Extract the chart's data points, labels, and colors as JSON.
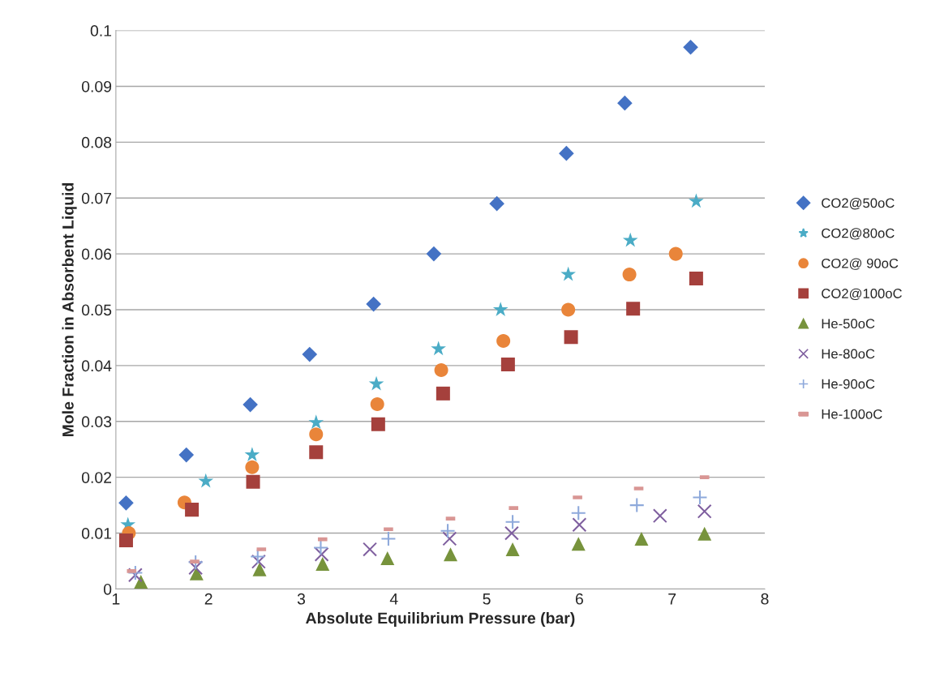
{
  "chart_data": {
    "type": "scatter",
    "xlabel": "Absolute Equilibrium Pressure (bar)",
    "ylabel": "Mole Fraction in Absorbent Liquid",
    "xlim": [
      1,
      8
    ],
    "xticks": [
      1,
      2,
      3,
      4,
      5,
      6,
      7,
      8
    ],
    "ylim": [
      0,
      0.1
    ],
    "yticks": [
      0,
      0.01,
      0.02,
      0.03,
      0.04,
      0.05,
      0.06,
      0.07,
      0.08,
      0.09,
      0.1
    ],
    "grid": "y",
    "legend": "right",
    "series": [
      {
        "name": "CO2@50oC",
        "color": "#4472c4",
        "marker": "diamond",
        "x": [
          1.11,
          1.76,
          2.45,
          3.09,
          3.78,
          4.43,
          5.11,
          5.86,
          6.49,
          7.2
        ],
        "values": [
          0.0154,
          0.024,
          0.033,
          0.042,
          0.051,
          0.06,
          0.069,
          0.078,
          0.087,
          0.097
        ]
      },
      {
        "name": "CO2@80oC",
        "color": "#4bacc6",
        "marker": "star",
        "x": [
          1.13,
          1.97,
          2.47,
          3.16,
          3.81,
          4.48,
          5.15,
          5.88,
          6.55,
          7.26
        ],
        "values": [
          0.0115,
          0.0193,
          0.024,
          0.0298,
          0.0367,
          0.043,
          0.05,
          0.0563,
          0.0624,
          0.0694
        ]
      },
      {
        "name": "CO2@ 90oC",
        "color": "#e9853a",
        "marker": "circle",
        "x": [
          1.14,
          1.74,
          2.47,
          3.16,
          3.82,
          4.51,
          5.18,
          5.88,
          6.54,
          7.04
        ],
        "values": [
          0.01,
          0.0155,
          0.0218,
          0.0277,
          0.0331,
          0.0392,
          0.0444,
          0.05,
          0.0563,
          0.06
        ]
      },
      {
        "name": "CO2@100oC",
        "color": "#a5403c",
        "marker": "square",
        "x": [
          1.11,
          1.82,
          2.48,
          3.16,
          3.83,
          4.53,
          5.23,
          5.91,
          6.58,
          7.26
        ],
        "values": [
          0.0087,
          0.0142,
          0.0192,
          0.0245,
          0.0295,
          0.035,
          0.0402,
          0.0451,
          0.0502,
          0.0556
        ]
      },
      {
        "name": "He-50oC",
        "color": "#77933c",
        "marker": "triangle",
        "x": [
          1.27,
          1.87,
          2.55,
          3.23,
          3.93,
          4.61,
          5.28,
          5.99,
          6.67,
          7.35
        ],
        "values": [
          0.0013,
          0.0028,
          0.0035,
          0.0045,
          0.0055,
          0.0062,
          0.0071,
          0.0081,
          0.009,
          0.0099
        ]
      },
      {
        "name": "He-80oC",
        "color": "#7f5f9f",
        "marker": "cross",
        "x": [
          1.21,
          1.86,
          2.54,
          3.22,
          3.74,
          4.6,
          5.27,
          6.0,
          6.87,
          7.35
        ],
        "values": [
          0.0025,
          0.0038,
          0.0049,
          0.0062,
          0.0071,
          0.009,
          0.01,
          0.0115,
          0.0131,
          0.0139
        ]
      },
      {
        "name": "He-90oC",
        "color": "#8ea9db",
        "marker": "plus",
        "x": [
          1.21,
          1.86,
          2.53,
          3.21,
          3.94,
          4.58,
          5.28,
          5.99,
          6.62,
          7.3
        ],
        "values": [
          0.0029,
          0.0048,
          0.0058,
          0.0074,
          0.009,
          0.0104,
          0.012,
          0.0136,
          0.015,
          0.0164
        ]
      },
      {
        "name": "He-100oC",
        "color": "#d99694",
        "x": [
          1.17,
          1.85,
          2.57,
          3.23,
          3.94,
          4.61,
          5.29,
          5.98,
          6.64,
          7.35
        ],
        "values": [
          0.0032,
          0.0049,
          0.0071,
          0.0089,
          0.0107,
          0.0126,
          0.0145,
          0.0164,
          0.018,
          0.02
        ]
      }
    ]
  }
}
